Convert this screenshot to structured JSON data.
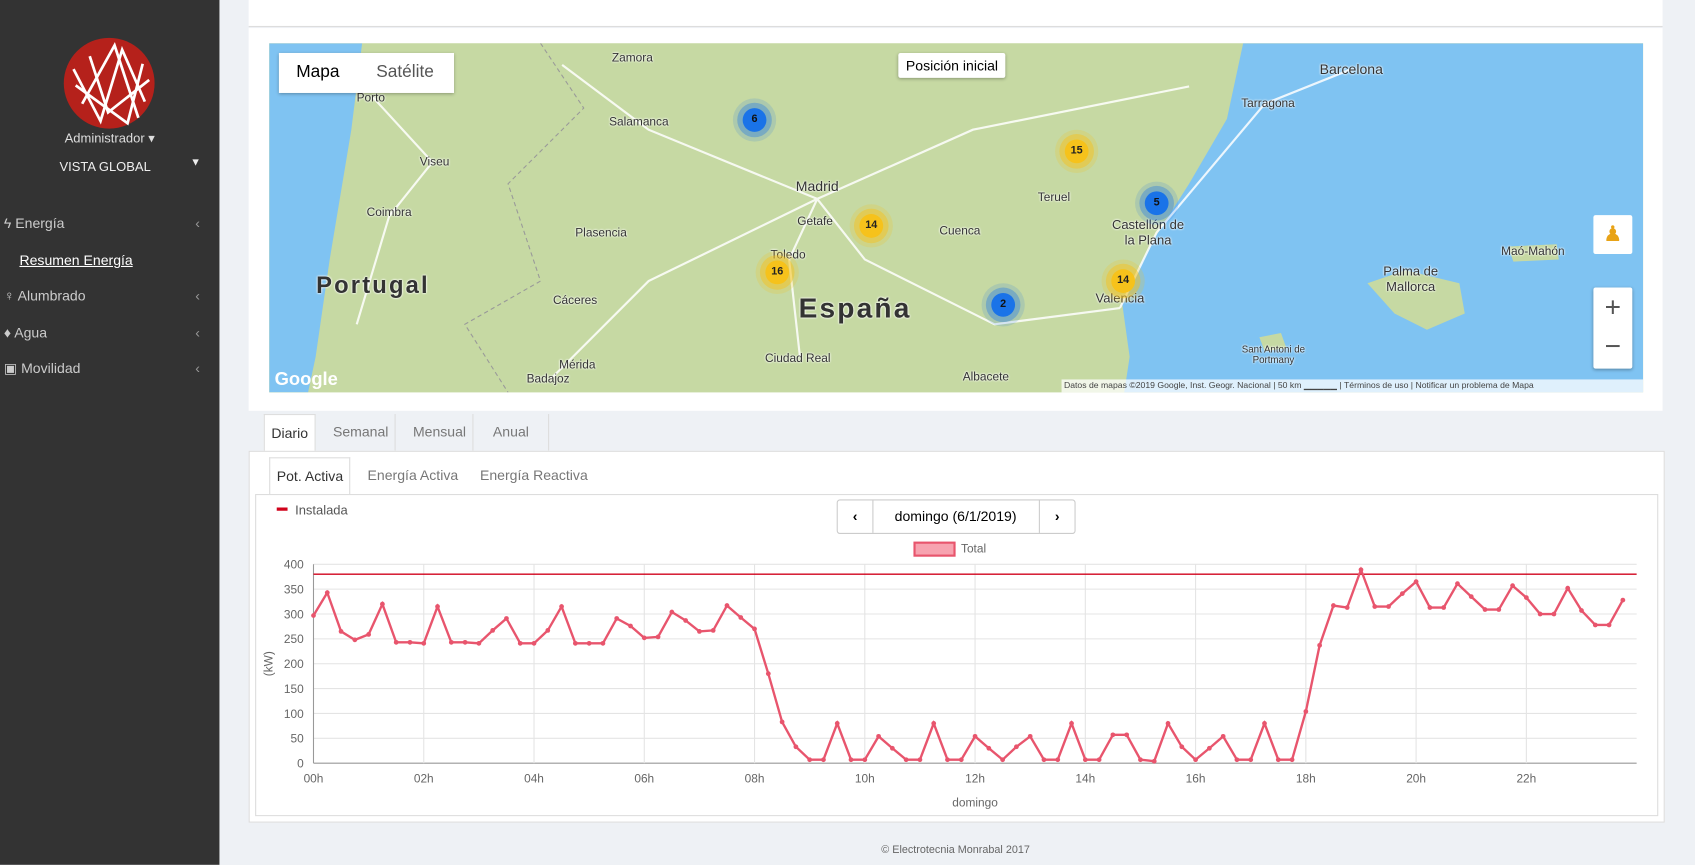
{
  "sidebar": {
    "user": "Administrador",
    "view": "VISTA GLOBAL",
    "menu": [
      {
        "label": "Energía",
        "items": [
          "Resumen Energía"
        ]
      },
      {
        "label": "Alumbrado"
      },
      {
        "label": "Agua"
      },
      {
        "label": "Movilidad"
      }
    ]
  },
  "map": {
    "controls": {
      "map": "Mapa",
      "satellite": "Satélite",
      "reset": "Posición inicial"
    },
    "labels": [
      "Porto",
      "Viseu",
      "Coimbra",
      "Portugal",
      "Zamora",
      "Salamanca",
      "Plasencia",
      "Cáceres",
      "Mérida",
      "Badajoz",
      "Madrid",
      "Getafe",
      "Toledo",
      "Ciudad Real",
      "España",
      "Cuenca",
      "Albacete",
      "Teruel",
      "Castellón de la Plana",
      "Valencia",
      "Barcelona",
      "Tarragona",
      "Palma de Mallorca",
      "Maó-Mahón",
      "Sant Antoni de Portmany"
    ],
    "clusters": [
      {
        "count": 6
      },
      {
        "count": 15
      },
      {
        "count": 5
      },
      {
        "count": 14
      },
      {
        "count": 16
      },
      {
        "count": 2
      },
      {
        "count": 14
      }
    ],
    "logo": "Google",
    "attribution": [
      "Datos de mapas ©2019 Google, Inst. Geogr. Nacional",
      "50 km",
      "Términos de uso",
      "Notificar un problema de Mapa"
    ]
  },
  "tabs": {
    "period": [
      "Diario",
      "Semanal",
      "Mensual",
      "Anual"
    ],
    "measure": [
      "Pot. Activa",
      "Energía Activa",
      "Energía Reactiva"
    ]
  },
  "date_nav": "domingo (6/1/2019)",
  "chart_data": {
    "type": "line",
    "ylabel": "(kW)",
    "xlabel": "domingo",
    "categories": [
      "00h",
      null,
      null,
      null,
      null,
      null,
      null,
      null,
      "02h",
      null,
      null,
      null,
      null,
      null,
      null,
      null,
      "04h",
      null,
      null,
      null,
      null,
      null,
      null,
      null,
      "06h",
      null,
      null,
      null,
      null,
      null,
      null,
      null,
      "08h",
      null,
      null,
      null,
      null,
      null,
      null,
      null,
      "10h",
      null,
      null,
      null,
      null,
      null,
      null,
      null,
      "12h",
      null,
      null,
      null,
      null,
      null,
      null,
      null,
      "14h",
      null,
      null,
      null,
      null,
      null,
      null,
      null,
      "16h",
      null,
      null,
      null,
      null,
      null,
      null,
      null,
      "18h",
      null,
      null,
      null,
      null,
      null,
      null,
      null,
      "20h",
      null,
      null,
      null,
      null,
      null,
      null,
      null,
      "22h",
      null,
      null,
      null,
      null,
      null,
      null,
      null
    ],
    "series": [
      {
        "name": "Total",
        "color": "#e8556d",
        "values": [
          297,
          343,
          265,
          248,
          259,
          320,
          243,
          243,
          241,
          315,
          243,
          243,
          241,
          267,
          291,
          241,
          241,
          267,
          315,
          241,
          241,
          241,
          291,
          276,
          252,
          254,
          304,
          287,
          265,
          267,
          317,
          293,
          270,
          180,
          83,
          33,
          7,
          7,
          80,
          7,
          7,
          54,
          30,
          7,
          7,
          80,
          7,
          7,
          54,
          30,
          7,
          33,
          54,
          7,
          7,
          80,
          7,
          7,
          57,
          57,
          7,
          4,
          80,
          33,
          7,
          30,
          54,
          7,
          7,
          80,
          7,
          7,
          104,
          237,
          317,
          313,
          389,
          315,
          315,
          341,
          365,
          313,
          313,
          361,
          335,
          309,
          309,
          357,
          333,
          300,
          300,
          352,
          307,
          278,
          278,
          328
        ]
      }
    ],
    "reference_lines": [
      {
        "name": "Instalada",
        "value": 380,
        "color": "#d0021b"
      }
    ],
    "ylim": [
      0,
      400
    ],
    "yticks": [
      0,
      50,
      100,
      150,
      200,
      250,
      300,
      350,
      400
    ],
    "grid": true
  },
  "footer": "© Electrotecnia Monrabal 2017"
}
